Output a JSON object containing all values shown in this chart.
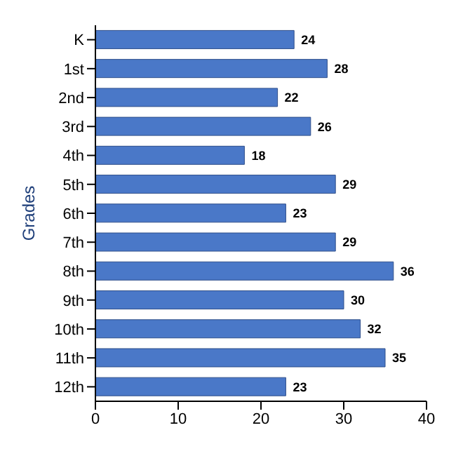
{
  "chart_data": {
    "type": "bar",
    "orientation": "horizontal",
    "ylabel": "Grades",
    "categories": [
      "K",
      "1st",
      "2nd",
      "3rd",
      "4th",
      "5th",
      "6th",
      "7th",
      "8th",
      "9th",
      "10th",
      "11th",
      "12th"
    ],
    "values": [
      24,
      28,
      22,
      26,
      18,
      29,
      23,
      29,
      36,
      30,
      32,
      35,
      23
    ],
    "color": "#4a78c8",
    "xlim": [
      0,
      40
    ],
    "xticks": [
      0,
      10,
      20,
      30,
      40
    ],
    "data_labels": true,
    "grid": false,
    "legend": false
  }
}
